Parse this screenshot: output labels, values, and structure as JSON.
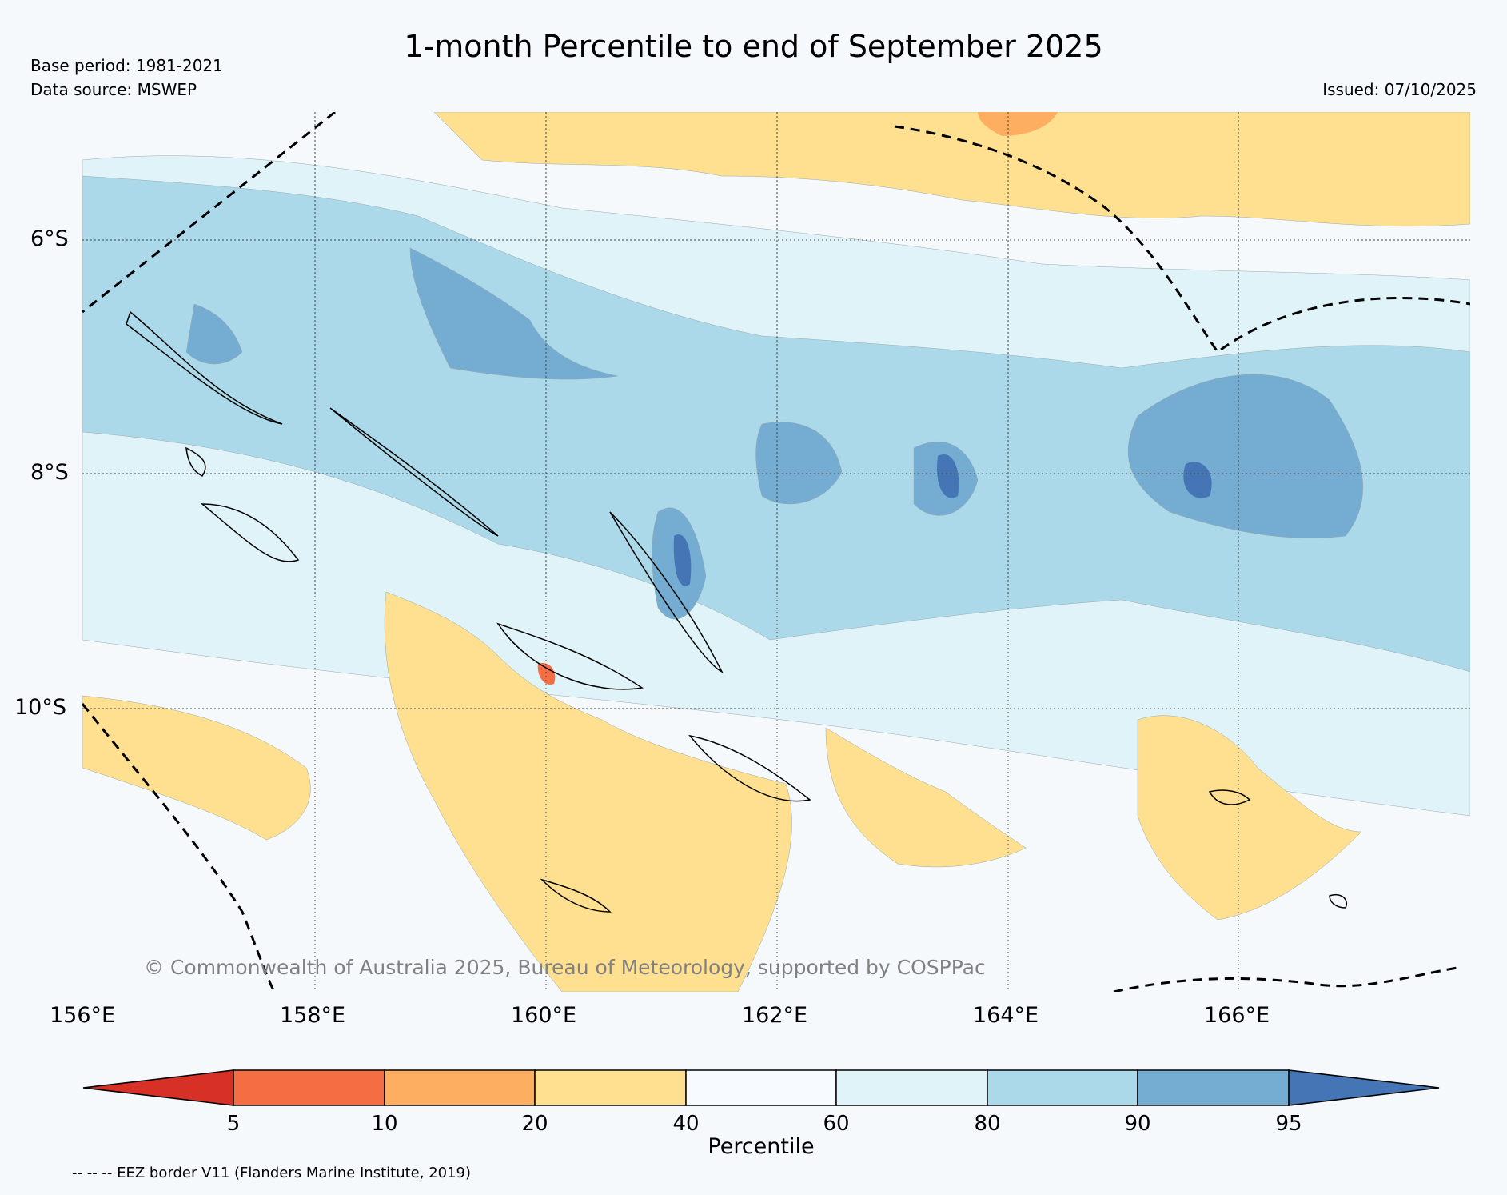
{
  "title": "1-month Percentile to end of September 2025",
  "base_period": "Base period: 1981-2021",
  "data_source": "Data source: MSWEP",
  "issued": "Issued: 07/10/2025",
  "lat_labels": [
    "6°S",
    "8°S",
    "10°S"
  ],
  "lon_labels": [
    "156°E",
    "158°E",
    "160°E",
    "162°E",
    "164°E",
    "166°E"
  ],
  "copyright": "© Commonwealth of Australia 2025, Bureau of Meteorology, supported by COSPPac",
  "colorbar": {
    "title": "Percentile",
    "tick_labels": [
      "5",
      "10",
      "20",
      "40",
      "60",
      "80",
      "90",
      "95"
    ],
    "colors": [
      "#d73027",
      "#f46d43",
      "#fdae61",
      "#fee090",
      "#f7fbff",
      "#e0f3f8",
      "#abd9e9",
      "#74add1",
      "#4575b4"
    ]
  },
  "footnote": "-- -- -- EEZ border V11 (Flanders Marine Institute, 2019)"
}
